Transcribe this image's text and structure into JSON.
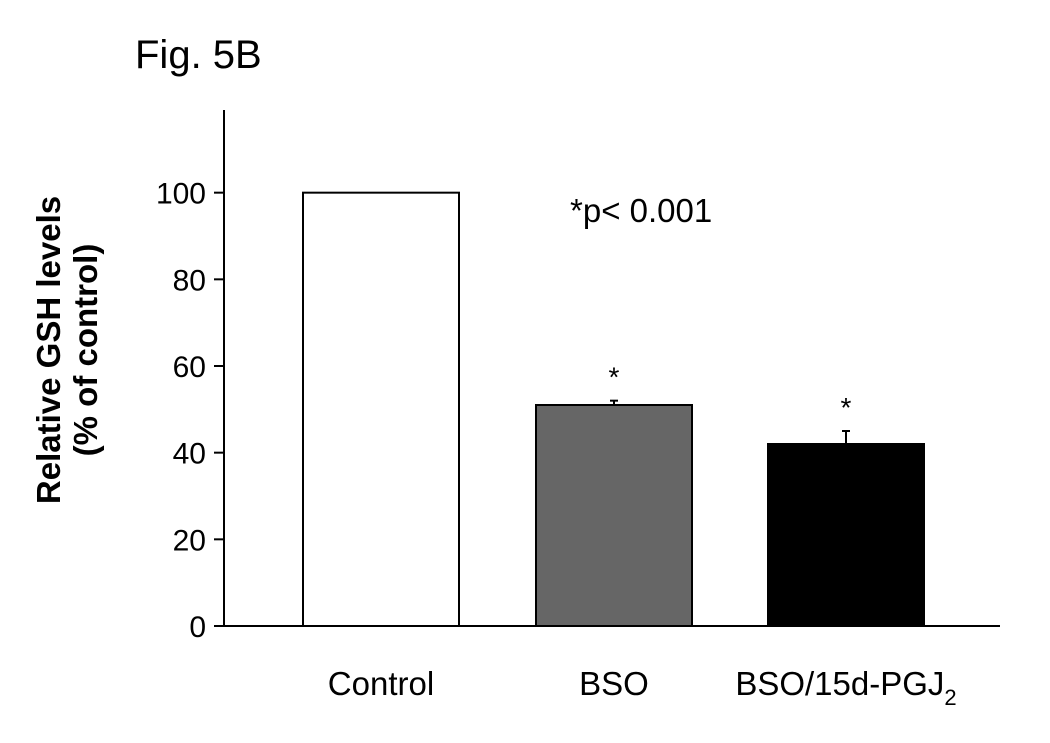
{
  "chart_data": {
    "type": "bar",
    "title": "Fig. 5B",
    "ylabel_lines": [
      "Relative GSH levels",
      "(% of control)"
    ],
    "xlabel": "",
    "categories": [
      {
        "label": "Control",
        "subscript": ""
      },
      {
        "label": "BSO",
        "subscript": ""
      },
      {
        "label": "BSO/15d-PGJ",
        "subscript": "2"
      }
    ],
    "values": [
      100,
      51,
      42
    ],
    "errors": [
      0,
      1,
      3
    ],
    "bar_colors": [
      "#ffffff",
      "#666666",
      "#000000"
    ],
    "significance_marks": [
      "",
      "*",
      "*"
    ],
    "annotation": "*p< 0.001",
    "ylim": [
      0,
      120
    ],
    "yticks": [
      0,
      20,
      40,
      60,
      80,
      100
    ],
    "grid": false
  }
}
